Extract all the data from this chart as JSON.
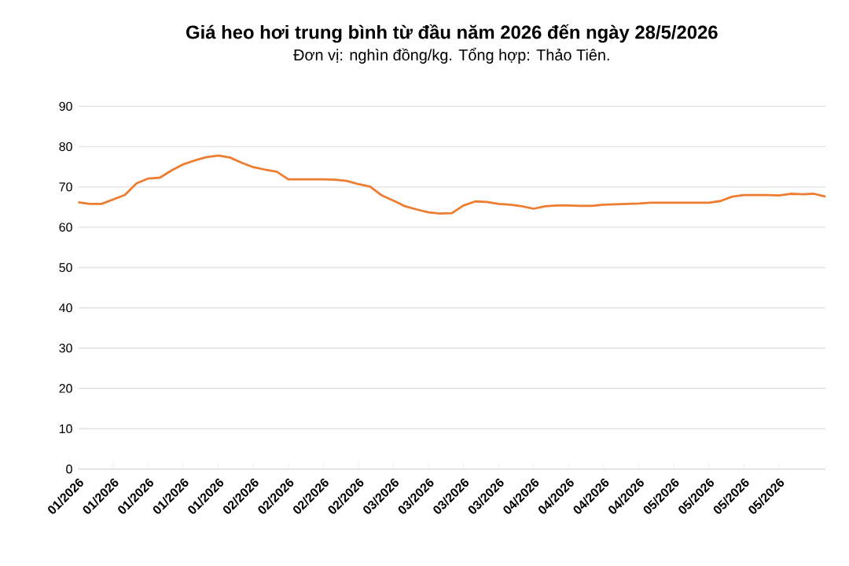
{
  "chart_data": {
    "type": "line",
    "title": "Giá heo hơi trung bình từ đầu năm 2026 đến ngày 28/5/2026",
    "subtitle": "Đơn vị: nghìn đồng/kg. Tổng hợp: Thảo Tiên.",
    "categories": [
      "01/2026",
      null,
      null,
      "01/2026",
      null,
      null,
      "01/2026",
      null,
      null,
      "01/2026",
      null,
      null,
      "01/2026",
      null,
      null,
      "02/2026",
      null,
      null,
      "02/2026",
      null,
      null,
      "02/2026",
      null,
      null,
      "02/2026",
      null,
      null,
      "03/2026",
      null,
      null,
      "03/2026",
      null,
      null,
      "03/2026",
      null,
      null,
      "03/2026",
      null,
      null,
      "04/2026",
      null,
      null,
      "04/2026",
      null,
      null,
      "04/2026",
      null,
      null,
      "04/2026",
      null,
      null,
      "05/2026",
      null,
      null,
      "05/2026",
      null,
      null,
      "05/2026",
      null,
      null,
      "05/2026",
      null,
      null,
      null,
      null
    ],
    "series": [
      {
        "color": "#ed7d31",
        "values": [
          66.2,
          65.8,
          65.8,
          66.9,
          68.0,
          70.9,
          72.1,
          72.3,
          74.1,
          75.6,
          76.6,
          77.4,
          77.8,
          77.3,
          76.0,
          74.9,
          74.3,
          73.8,
          71.9,
          71.9,
          71.9,
          71.9,
          71.8,
          71.5,
          70.7,
          70.1,
          67.9,
          66.6,
          65.2,
          64.4,
          63.7,
          63.4,
          63.5,
          65.4,
          66.4,
          66.3,
          65.8,
          65.6,
          65.2,
          64.6,
          65.2,
          65.4,
          65.4,
          65.3,
          65.3,
          65.6,
          65.7,
          65.8,
          65.9,
          66.1,
          66.1,
          66.1,
          66.1,
          66.1,
          66.1,
          66.5,
          67.6,
          68.0,
          68.0,
          68.0,
          67.9,
          68.3,
          68.2,
          68.3,
          67.6
        ]
      }
    ],
    "ylim": [
      0,
      90
    ],
    "yticks": [
      0,
      10,
      20,
      30,
      40,
      50,
      60,
      70,
      80,
      90
    ],
    "grid": "y",
    "marker": "none",
    "line_style": "solid"
  }
}
